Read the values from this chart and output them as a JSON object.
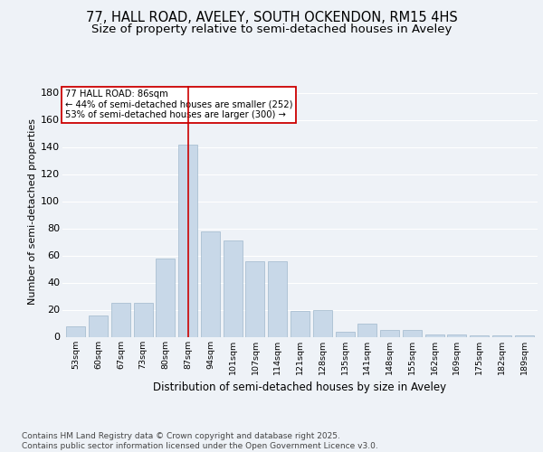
{
  "title": "77, HALL ROAD, AVELEY, SOUTH OCKENDON, RM15 4HS",
  "subtitle": "Size of property relative to semi-detached houses in Aveley",
  "xlabel": "Distribution of semi-detached houses by size in Aveley",
  "ylabel": "Number of semi-detached properties",
  "categories": [
    "53sqm",
    "60sqm",
    "67sqm",
    "73sqm",
    "80sqm",
    "87sqm",
    "94sqm",
    "101sqm",
    "107sqm",
    "114sqm",
    "121sqm",
    "128sqm",
    "135sqm",
    "141sqm",
    "148sqm",
    "155sqm",
    "162sqm",
    "169sqm",
    "175sqm",
    "182sqm",
    "189sqm"
  ],
  "values": [
    8,
    16,
    25,
    25,
    58,
    142,
    78,
    71,
    56,
    56,
    19,
    20,
    4,
    10,
    5,
    5,
    2,
    2,
    1,
    1,
    1
  ],
  "bar_color": "#c8d8e8",
  "bar_edgecolor": "#a0b8cc",
  "vline_x_index": 5,
  "vline_color": "#cc0000",
  "ylim": [
    0,
    185
  ],
  "yticks": [
    0,
    20,
    40,
    60,
    80,
    100,
    120,
    140,
    160,
    180
  ],
  "annotation_text": "77 HALL ROAD: 86sqm\n← 44% of semi-detached houses are smaller (252)\n53% of semi-detached houses are larger (300) →",
  "annotation_box_color": "#ffffff",
  "annotation_box_edgecolor": "#cc0000",
  "footer_text": "Contains HM Land Registry data © Crown copyright and database right 2025.\nContains public sector information licensed under the Open Government Licence v3.0.",
  "bg_color": "#eef2f7",
  "grid_color": "#ffffff",
  "title_fontsize": 10.5,
  "subtitle_fontsize": 9.5,
  "footer_fontsize": 6.5
}
